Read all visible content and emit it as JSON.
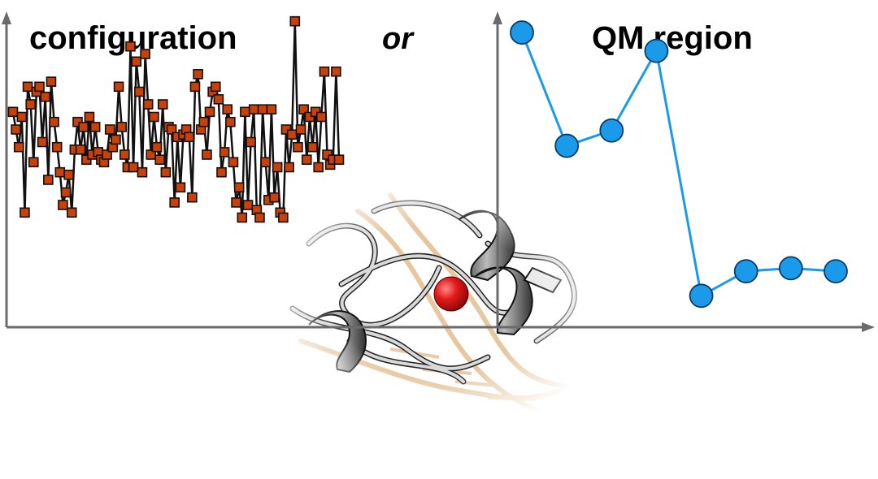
{
  "chart_data": [
    {
      "type": "line",
      "title": "configuration",
      "xlabel": "",
      "ylabel": "",
      "ylim": [
        0,
        100
      ],
      "marker": "square",
      "series": [
        {
          "color": "#c8400a",
          "values": [
            62,
            55,
            48,
            60,
            22,
            72,
            65,
            42,
            70,
            72,
            50,
            68,
            35,
            74,
            58,
            48,
            38,
            25,
            30,
            37,
            22,
            47,
            58,
            47,
            56,
            43,
            60,
            45,
            56,
            46,
            43,
            42,
            45,
            55,
            48,
            51,
            72,
            56,
            45,
            40,
            88,
            40,
            82,
            70,
            38,
            85,
            65,
            45,
            60,
            48,
            43,
            65,
            38,
            56,
            55,
            26,
            52,
            32,
            53,
            55,
            52,
            28,
            72,
            77,
            55,
            58,
            45,
            62,
            70,
            72,
            67,
            38,
            46,
            63,
            58,
            42,
            26,
            32,
            20,
            62,
            25,
            50,
            63,
            23,
            20,
            63,
            42,
            27,
            63,
            28,
            40,
            22,
            20,
            55,
            40,
            53,
            98,
            48,
            55,
            63,
            43,
            60,
            48,
            62,
            40,
            60,
            78,
            45,
            41,
            43,
            78,
            43
          ]
        }
      ],
      "show_axis_ticks": false
    },
    {
      "type": "line",
      "title": "QM region",
      "xlabel": "",
      "ylabel": "",
      "ylim": [
        0,
        100
      ],
      "marker": "circle",
      "series": [
        {
          "color": "#1a9ae8",
          "values": [
            96,
            59,
            64,
            90,
            10,
            18,
            19,
            18
          ]
        }
      ],
      "show_axis_ticks": false
    }
  ],
  "separator": "or",
  "illustration": {
    "kind": "protein-cartoon",
    "active_site_color": "#d01818"
  }
}
